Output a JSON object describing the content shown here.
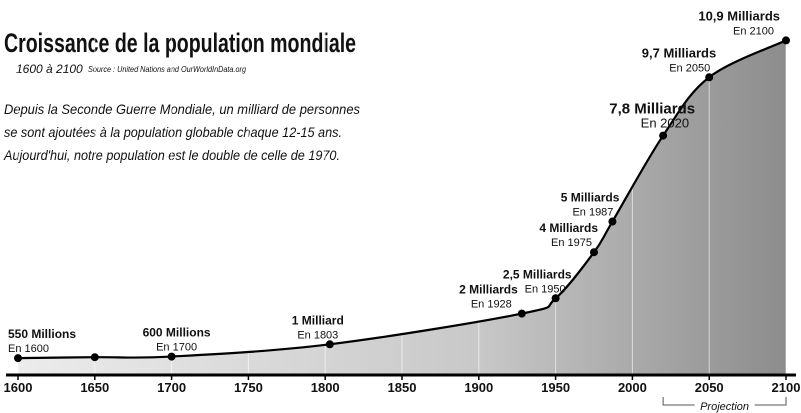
{
  "chart_data": {
    "type": "area",
    "title": "Croissance de la population mondiale",
    "subtitle": "1600 à 2100",
    "source": "Source : United Nations and OurWorldInData.org",
    "description": [
      "Depuis la Seconde Guerre Mondiale, un milliard de personnes",
      "se sont ajoutées à la population globable chaque 12-15 ans.",
      "Aujourd'hui, notre population est le double de celle de 1970."
    ],
    "x": [
      1600,
      1650,
      1700,
      1803,
      1928,
      1950,
      1975,
      1987,
      2020,
      2050,
      2100
    ],
    "values": [
      550,
      580,
      600,
      1000,
      2000,
      2500,
      4000,
      5000,
      7800,
      9700,
      10900
    ],
    "value_labels": [
      "550 Millions",
      null,
      "600 Millions",
      "1 Milliard",
      "2 Milliards",
      "2,5 Milliards",
      "4 Milliards",
      "5 Milliards",
      "7,8 Milliards",
      "9,7 Milliards",
      "10,9 Milliards"
    ],
    "point_notes": [
      "En 1600",
      null,
      "En 1700",
      "En 1803",
      "En 1928",
      "En 1950",
      "En 1975",
      "En 1987",
      "En 2020",
      "En 2050",
      "En 2100"
    ],
    "xlim": [
      1600,
      2100
    ],
    "xticks": [
      1600,
      1650,
      1700,
      1750,
      1800,
      1850,
      1900,
      1950,
      2000,
      2050,
      2100
    ],
    "ylim": [
      0,
      11500
    ],
    "grid": true,
    "projection": {
      "label": "Projection",
      "from": 2020,
      "to": 2100
    },
    "color": "#000000"
  }
}
